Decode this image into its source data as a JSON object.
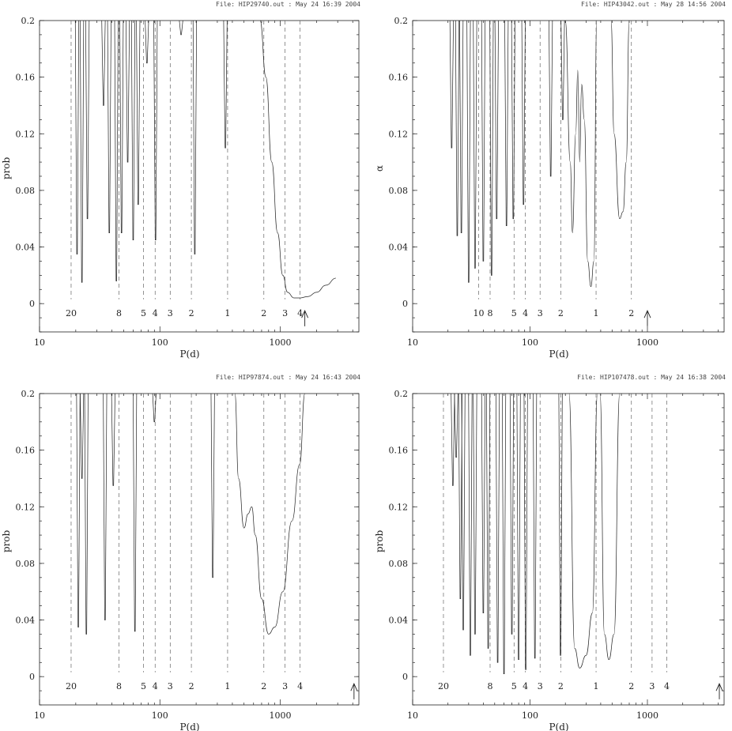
{
  "chart_data": [
    {
      "type": "line",
      "header": "File: HIP29740.out : May 24 16:39 2004",
      "xlabel": "P(d)",
      "ylabel": "prob",
      "xscale": "log",
      "xlim": [
        10,
        4500
      ],
      "ylim": [
        -0.02,
        0.2
      ],
      "x_ticks": [
        10,
        100,
        1000
      ],
      "y_ticks": [
        0,
        0.04,
        0.08,
        0.12,
        0.16,
        0.2
      ],
      "harmonics": [
        {
          "period": 18.3,
          "label": "20"
        },
        {
          "period": 45.7,
          "label": "8"
        },
        {
          "period": 73.1,
          "label": "5"
        },
        {
          "period": 91.3,
          "label": "4"
        },
        {
          "period": 121.8,
          "label": "3"
        },
        {
          "period": 182.6,
          "label": "2"
        },
        {
          "period": 365.25,
          "label": "1"
        },
        {
          "period": 730.5,
          "label": "2"
        },
        {
          "period": 1095.75,
          "label": "3"
        },
        {
          "period": 1461,
          "label": "4"
        }
      ],
      "arrow_period": 1600,
      "series": [
        {
          "spikes": [
            {
              "p": 20.5,
              "min": 0.035
            },
            {
              "p": 22.5,
              "min": 0.015
            },
            {
              "p": 25,
              "min": 0.06
            },
            {
              "p": 34,
              "min": 0.14
            },
            {
              "p": 38,
              "min": 0.05
            },
            {
              "p": 43.5,
              "min": 0.016
            },
            {
              "p": 48,
              "min": 0.05
            },
            {
              "p": 54,
              "min": 0.1
            },
            {
              "p": 60,
              "min": 0.045
            },
            {
              "p": 66,
              "min": 0.07
            },
            {
              "p": 78,
              "min": 0.17
            },
            {
              "p": 92,
              "min": 0.045
            },
            {
              "p": 150,
              "min": 0.19
            },
            {
              "p": 195,
              "min": 0.035
            },
            {
              "p": 350,
              "min": 0.11
            }
          ],
          "curve": [
            [
              680,
              0.2
            ],
            [
              760,
              0.16
            ],
            [
              850,
              0.1
            ],
            [
              950,
              0.05
            ],
            [
              1050,
              0.02
            ],
            [
              1150,
              0.008
            ],
            [
              1300,
              0.004
            ],
            [
              1450,
              0.004
            ],
            [
              1700,
              0.005
            ],
            [
              2000,
              0.008
            ],
            [
              2400,
              0.013
            ],
            [
              2900,
              0.018
            ]
          ]
        }
      ]
    },
    {
      "type": "line",
      "header": "File: HIP43042.out : May 28 14:56 2004",
      "xlabel": "P(d)",
      "ylabel": "α",
      "xscale": "log",
      "xlim": [
        10,
        4500
      ],
      "ylim": [
        -0.02,
        0.2
      ],
      "x_ticks": [
        10,
        100,
        1000
      ],
      "y_ticks": [
        0,
        0.04,
        0.08,
        0.12,
        0.16,
        0.2
      ],
      "harmonics": [
        {
          "period": 36.5,
          "label": "10"
        },
        {
          "period": 45.7,
          "label": "8"
        },
        {
          "period": 73.1,
          "label": "5"
        },
        {
          "period": 91.3,
          "label": "4"
        },
        {
          "period": 121.8,
          "label": "3"
        },
        {
          "period": 182.6,
          "label": "2"
        },
        {
          "period": 365.25,
          "label": "1"
        },
        {
          "period": 730.5,
          "label": "2"
        }
      ],
      "arrow_period": 1000,
      "series": [
        {
          "spikes": [
            {
              "p": 21.5,
              "min": 0.11
            },
            {
              "p": 24,
              "min": 0.048
            },
            {
              "p": 26,
              "min": 0.05
            },
            {
              "p": 30,
              "min": 0.015
            },
            {
              "p": 34,
              "min": 0.025
            },
            {
              "p": 40,
              "min": 0.03
            },
            {
              "p": 47,
              "min": 0.02
            },
            {
              "p": 52,
              "min": 0.06
            },
            {
              "p": 63,
              "min": 0.055
            },
            {
              "p": 72,
              "min": 0.06
            },
            {
              "p": 88,
              "min": 0.07
            },
            {
              "p": 150,
              "min": 0.09
            },
            {
              "p": 190,
              "min": 0.13
            }
          ],
          "curve": [
            [
              200,
              0.2
            ],
            [
              220,
              0.1
            ],
            [
              230,
              0.05
            ],
            [
              245,
              0.12
            ],
            [
              255,
              0.165
            ],
            [
              265,
              0.1
            ],
            [
              275,
              0.155
            ],
            [
              290,
              0.13
            ],
            [
              310,
              0.03
            ],
            [
              330,
              0.012
            ],
            [
              350,
              0.03
            ],
            [
              370,
              0.2
            ]
          ],
          "curve2": [
            [
              490,
              0.2
            ],
            [
              520,
              0.12
            ],
            [
              580,
              0.06
            ],
            [
              620,
              0.065
            ],
            [
              660,
              0.1
            ],
            [
              700,
              0.2
            ]
          ]
        }
      ]
    },
    {
      "type": "line",
      "header": "File: HIP97874.out : May 24 16:43 2004",
      "xlabel": "P(d)",
      "ylabel": "prob",
      "xscale": "log",
      "xlim": [
        10,
        4500
      ],
      "ylim": [
        -0.02,
        0.2
      ],
      "x_ticks": [
        10,
        100,
        1000
      ],
      "y_ticks": [
        0,
        0.04,
        0.08,
        0.12,
        0.16,
        0.2
      ],
      "harmonics": [
        {
          "period": 18.3,
          "label": "20"
        },
        {
          "period": 45.7,
          "label": "8"
        },
        {
          "period": 73.1,
          "label": "5"
        },
        {
          "period": 91.3,
          "label": "4"
        },
        {
          "period": 121.8,
          "label": "3"
        },
        {
          "period": 182.6,
          "label": "2"
        },
        {
          "period": 365.25,
          "label": "1"
        },
        {
          "period": 730.5,
          "label": "2"
        },
        {
          "period": 1095.75,
          "label": "3"
        },
        {
          "period": 1461,
          "label": "4"
        }
      ],
      "arrow_period": 4100,
      "series": [
        {
          "spikes": [
            {
              "p": 21,
              "min": 0.035
            },
            {
              "p": 22.5,
              "min": 0.14
            },
            {
              "p": 24.5,
              "min": 0.03
            },
            {
              "p": 35,
              "min": 0.04
            },
            {
              "p": 41,
              "min": 0.135
            },
            {
              "p": 62,
              "min": 0.032
            },
            {
              "p": 90,
              "min": 0.18
            },
            {
              "p": 275,
              "min": 0.07
            }
          ],
          "curve": [
            [
              420,
              0.2
            ],
            [
              450,
              0.14
            ],
            [
              500,
              0.105
            ],
            [
              540,
              0.115
            ],
            [
              580,
              0.12
            ],
            [
              620,
              0.1
            ],
            [
              700,
              0.055
            ],
            [
              800,
              0.03
            ],
            [
              900,
              0.035
            ],
            [
              1050,
              0.06
            ],
            [
              1250,
              0.11
            ],
            [
              1450,
              0.15
            ],
            [
              1600,
              0.2
            ]
          ]
        }
      ]
    },
    {
      "type": "line",
      "header": "File: HIP107478.out : May 24 16:38 2004",
      "xlabel": "P(d)",
      "ylabel": "prob",
      "xscale": "log",
      "xlim": [
        10,
        4500
      ],
      "ylim": [
        -0.02,
        0.2
      ],
      "x_ticks": [
        10,
        100,
        1000
      ],
      "y_ticks": [
        0,
        0.04,
        0.08,
        0.12,
        0.16,
        0.2
      ],
      "harmonics": [
        {
          "period": 18.3,
          "label": "20"
        },
        {
          "period": 45.7,
          "label": "8"
        },
        {
          "period": 73.1,
          "label": "5"
        },
        {
          "period": 91.3,
          "label": "4"
        },
        {
          "period": 121.8,
          "label": "3"
        },
        {
          "period": 182.6,
          "label": "2"
        },
        {
          "period": 365.25,
          "label": "1"
        },
        {
          "period": 730.5,
          "label": "2"
        },
        {
          "period": 1095.75,
          "label": "3"
        },
        {
          "period": 1461,
          "label": "4"
        }
      ],
      "arrow_period": 4100,
      "series": [
        {
          "spikes": [
            {
              "p": 22,
              "min": 0.135
            },
            {
              "p": 23.5,
              "min": 0.155
            },
            {
              "p": 25.5,
              "min": 0.055
            },
            {
              "p": 27,
              "min": 0.033
            },
            {
              "p": 31,
              "min": 0.015
            },
            {
              "p": 34,
              "min": 0.03
            },
            {
              "p": 40,
              "min": 0.045
            },
            {
              "p": 44,
              "min": 0.02
            },
            {
              "p": 53,
              "min": 0.01
            },
            {
              "p": 60,
              "min": 0.002
            },
            {
              "p": 70,
              "min": 0.03
            },
            {
              "p": 80,
              "min": 0.012
            },
            {
              "p": 92,
              "min": 0.005
            },
            {
              "p": 110,
              "min": 0.013
            },
            {
              "p": 182,
              "min": 0.015
            }
          ],
          "curve": [
            [
              215,
              0.2
            ],
            [
              240,
              0.02
            ],
            [
              265,
              0.006
            ],
            [
              300,
              0.015
            ],
            [
              340,
              0.045
            ],
            [
              375,
              0.2
            ]
          ],
          "curve2": [
            [
              395,
              0.2
            ],
            [
              430,
              0.03
            ],
            [
              470,
              0.012
            ],
            [
              520,
              0.03
            ],
            [
              580,
              0.2
            ]
          ]
        }
      ]
    }
  ]
}
